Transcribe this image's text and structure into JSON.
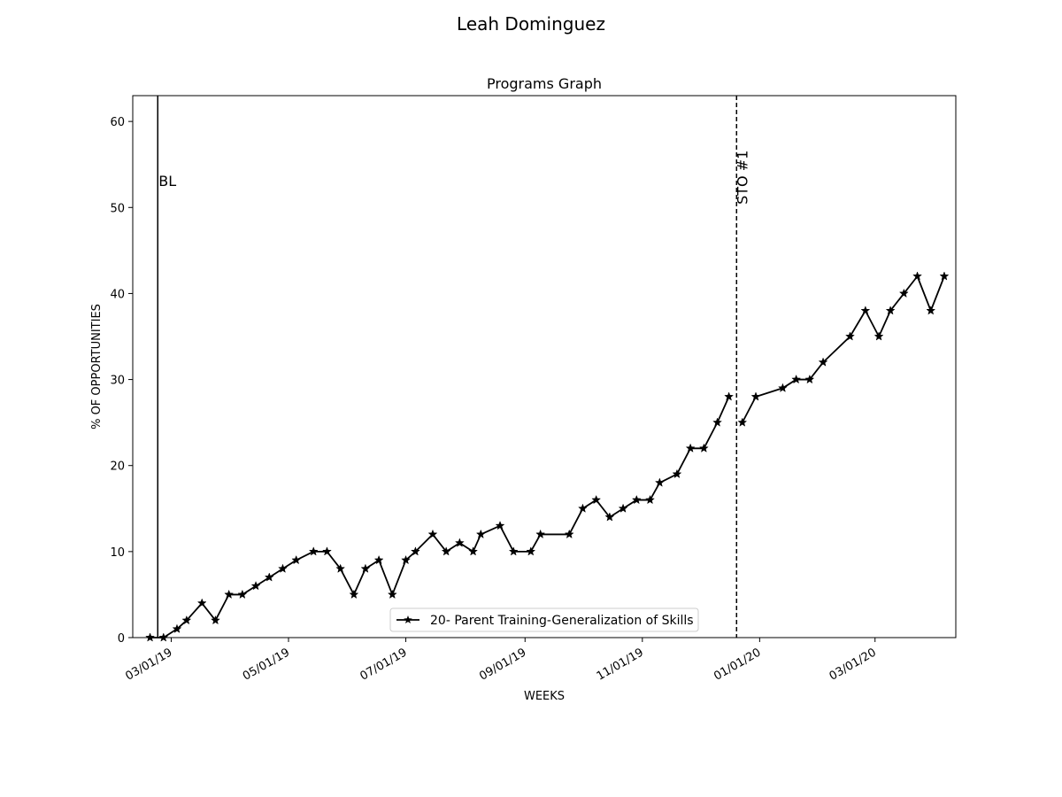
{
  "chart_data": {
    "type": "line",
    "suptitle": "Leah  Dominguez",
    "title": "Programs Graph",
    "xlabel": "WEEKS",
    "ylabel": "% OF OPPORTUNITIES",
    "xlim": [
      "2019-02-09",
      "2020-04-12"
    ],
    "ylim": [
      0,
      63
    ],
    "yticks": [
      0,
      10,
      20,
      30,
      40,
      50,
      60
    ],
    "xticks": [
      {
        "date": "2019-03-01",
        "label": "03/01/19"
      },
      {
        "date": "2019-05-01",
        "label": "05/01/19"
      },
      {
        "date": "2019-07-01",
        "label": "07/01/19"
      },
      {
        "date": "2019-09-01",
        "label": "09/01/19"
      },
      {
        "date": "2019-11-01",
        "label": "11/01/19"
      },
      {
        "date": "2020-01-01",
        "label": "01/01/20"
      },
      {
        "date": "2020-03-01",
        "label": "03/01/20"
      }
    ],
    "phase_lines": [
      {
        "date": "2019-02-22",
        "label": "BL",
        "style": "solid"
      },
      {
        "date": "2019-12-20",
        "label": "STO #1",
        "style": "dashed"
      }
    ],
    "legend": {
      "position": "lower center"
    },
    "series": [
      {
        "name": "20- Parent Training-Generalization of Skills",
        "color": "#000000",
        "marker": "star",
        "segments": [
          [
            [
              "2019-02-18",
              0
            ],
            [
              "2019-02-25",
              0
            ],
            [
              "2019-03-04",
              1
            ],
            [
              "2019-03-09",
              2
            ],
            [
              "2019-03-17",
              4
            ],
            [
              "2019-03-24",
              2
            ],
            [
              "2019-03-31",
              5
            ],
            [
              "2019-04-07",
              5
            ],
            [
              "2019-04-14",
              6
            ],
            [
              "2019-04-21",
              7
            ],
            [
              "2019-04-28",
              8
            ],
            [
              "2019-05-05",
              9
            ],
            [
              "2019-05-14",
              10
            ],
            [
              "2019-05-21",
              10
            ],
            [
              "2019-05-28",
              8
            ],
            [
              "2019-06-04",
              5
            ],
            [
              "2019-06-10",
              8
            ],
            [
              "2019-06-17",
              9
            ],
            [
              "2019-06-24",
              5
            ],
            [
              "2019-07-01",
              9
            ],
            [
              "2019-07-06",
              10
            ],
            [
              "2019-07-15",
              12
            ],
            [
              "2019-07-22",
              10
            ],
            [
              "2019-07-29",
              11
            ],
            [
              "2019-08-05",
              10
            ],
            [
              "2019-08-09",
              12
            ],
            [
              "2019-08-19",
              13
            ],
            [
              "2019-08-26",
              10
            ],
            [
              "2019-09-04",
              10
            ],
            [
              "2019-09-09",
              12
            ],
            [
              "2019-09-24",
              12
            ],
            [
              "2019-10-01",
              15
            ],
            [
              "2019-10-08",
              16
            ],
            [
              "2019-10-15",
              14
            ],
            [
              "2019-10-22",
              15
            ],
            [
              "2019-10-29",
              16
            ],
            [
              "2019-11-05",
              16
            ],
            [
              "2019-11-10",
              18
            ],
            [
              "2019-11-19",
              19
            ],
            [
              "2019-11-26",
              22
            ],
            [
              "2019-12-03",
              22
            ],
            [
              "2019-12-10",
              25
            ],
            [
              "2019-12-16",
              28
            ]
          ],
          [
            [
              "2019-12-23",
              25
            ],
            [
              "2019-12-30",
              28
            ],
            [
              "2020-01-13",
              29
            ],
            [
              "2020-01-20",
              30
            ],
            [
              "2020-01-27",
              30
            ],
            [
              "2020-02-03",
              32
            ],
            [
              "2020-02-17",
              35
            ],
            [
              "2020-02-25",
              38
            ],
            [
              "2020-03-03",
              35
            ],
            [
              "2020-03-09",
              38
            ],
            [
              "2020-03-16",
              40
            ],
            [
              "2020-03-23",
              42
            ],
            [
              "2020-03-30",
              38
            ],
            [
              "2020-04-06",
              42
            ]
          ]
        ]
      }
    ]
  }
}
